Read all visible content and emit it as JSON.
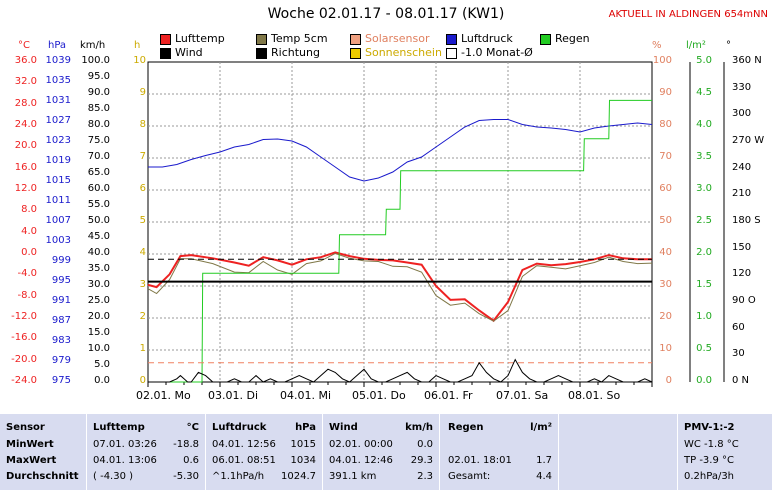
{
  "header": {
    "title": "Woche 02.01.17 - 08.01.17 (KW1)",
    "live": "AKTUELL IN ALDINGEN 654mNN"
  },
  "legend": [
    {
      "label": "Lufttemp",
      "color": "#ee2222"
    },
    {
      "label": "Temp 5cm",
      "color": "#807848"
    },
    {
      "label": "Solarsensor",
      "color": "#f0a080",
      "text_color": "#e08060"
    },
    {
      "label": "Luftdruck",
      "color": "#1a1acc"
    },
    {
      "label": "Regen",
      "color": "#22cc22"
    },
    {
      "label": "Wind",
      "color": "#000000"
    },
    {
      "label": "Richtung",
      "color": "#000000"
    },
    {
      "label": "Sonnenschein",
      "color": "#eecc00",
      "text_color": "#ccaa00"
    },
    {
      "label": "-1.0 Monat-Ø",
      "color": "#ffffff"
    }
  ],
  "axes": {
    "temp": {
      "unit": "°C",
      "color": "#ee2222",
      "ticks": [
        "36.0",
        "32.0",
        "28.0",
        "24.0",
        "20.0",
        "16.0",
        "12.0",
        "8.0",
        "4.0",
        "0.0",
        "-4.0",
        "-8.0",
        "-12.0",
        "-16.0",
        "-20.0",
        "-24.0"
      ]
    },
    "pressure": {
      "unit": "hPa",
      "color": "#1a1acc",
      "ticks": [
        "1039",
        "1035",
        "1031",
        "1027",
        "1023",
        "1019",
        "1015",
        "1011",
        "1007",
        "1003",
        "999",
        "995",
        "991",
        "987",
        "983",
        "979",
        "975"
      ]
    },
    "wind": {
      "unit": "km/h",
      "color": "#000000",
      "ticks": [
        "100.0",
        "95.0",
        "90.0",
        "85.0",
        "80.0",
        "75.0",
        "70.0",
        "65.0",
        "60.0",
        "55.0",
        "50.0",
        "45.0",
        "40.0",
        "35.0",
        "30.0",
        "25.0",
        "20.0",
        "15.0",
        "10.0",
        "5.0",
        "0.0"
      ]
    },
    "sun": {
      "unit": "h",
      "color": "#ccaa00",
      "ticks": [
        "10",
        "9",
        "8",
        "7",
        "6",
        "5",
        "4",
        "3",
        "2",
        "1",
        "0"
      ]
    },
    "percent": {
      "unit": "%",
      "color": "#e08060",
      "ticks": [
        "100",
        "90",
        "80",
        "70",
        "60",
        "50",
        "40",
        "30",
        "20",
        "10",
        "0"
      ]
    },
    "rain": {
      "unit": "l/m²",
      "color": "#22aa22",
      "ticks": [
        "5.0",
        "4.5",
        "4.0",
        "3.5",
        "3.0",
        "2.5",
        "2.0",
        "1.5",
        "1.0",
        "0.5",
        "0.0"
      ]
    },
    "direction": {
      "unit": "°",
      "color": "#000000",
      "ticks": [
        "360 N",
        "330",
        "300",
        "270 W",
        "240",
        "210",
        "180 S",
        "150",
        "120",
        "90 O",
        "60",
        "30",
        "0 N"
      ]
    }
  },
  "chart_data": {
    "type": "line",
    "title": "Woche 02.01.17 - 08.01.17 (KW1)",
    "x_unit": "day",
    "x_range": [
      0,
      7
    ],
    "categories": [
      "02.01. Mo",
      "03.01. Di",
      "04.01. Mi",
      "05.01. Do",
      "06.01. Fr",
      "07.01. Sa",
      "08.01. So"
    ],
    "series": [
      {
        "name": "Lufttemp",
        "axis": "temp",
        "color": "#ee2222",
        "width": 2,
        "x": [
          0,
          0.12,
          0.3,
          0.45,
          0.6,
          0.9,
          1.2,
          1.4,
          1.6,
          1.8,
          2.0,
          2.2,
          2.4,
          2.6,
          2.8,
          3.0,
          3.2,
          3.4,
          3.6,
          3.8,
          4.0,
          4.2,
          4.4,
          4.6,
          4.8,
          5.0,
          5.2,
          5.4,
          5.6,
          5.8,
          6.0,
          6.2,
          6.4,
          6.6,
          6.8,
          7.0
        ],
        "y": [
          -5.8,
          -6.2,
          -3.8,
          -0.4,
          -0.2,
          -0.8,
          -1.6,
          -2.2,
          -0.6,
          -1.2,
          -2.0,
          -1.0,
          -0.6,
          0.3,
          -0.4,
          -0.9,
          -1.1,
          -1.2,
          -1.6,
          -2.0,
          -6.0,
          -8.6,
          -8.5,
          -10.6,
          -12.5,
          -9.0,
          -3.0,
          -1.8,
          -2.1,
          -1.9,
          -1.5,
          -1.0,
          -0.2,
          -0.8,
          -1.0,
          -1.0
        ]
      },
      {
        "name": "Temp 5cm",
        "axis": "temp",
        "color": "#807848",
        "width": 1,
        "x": [
          0,
          0.12,
          0.3,
          0.45,
          0.6,
          0.9,
          1.2,
          1.4,
          1.6,
          1.8,
          2.0,
          2.2,
          2.4,
          2.6,
          2.8,
          3.0,
          3.2,
          3.4,
          3.6,
          3.8,
          4.0,
          4.2,
          4.4,
          4.6,
          4.8,
          5.0,
          5.2,
          5.4,
          5.6,
          5.8,
          6.0,
          6.2,
          6.4,
          6.6,
          6.8,
          7.0
        ],
        "y": [
          -6.5,
          -7.4,
          -4.8,
          -0.9,
          -0.9,
          -1.8,
          -3.4,
          -3.5,
          -1.4,
          -3.0,
          -3.8,
          -1.8,
          -1.3,
          0.1,
          -0.8,
          -1.3,
          -1.4,
          -2.3,
          -2.4,
          -3.4,
          -7.8,
          -9.6,
          -9.2,
          -11.2,
          -12.6,
          -10.6,
          -4.2,
          -2.2,
          -2.5,
          -2.8,
          -2.2,
          -1.6,
          -0.6,
          -1.4,
          -1.8,
          -1.7
        ]
      },
      {
        "name": "Luftdruck",
        "axis": "pressure",
        "color": "#1a1acc",
        "width": 1,
        "x": [
          0,
          0.2,
          0.4,
          0.6,
          0.8,
          1.0,
          1.2,
          1.4,
          1.6,
          1.8,
          2.0,
          2.2,
          2.4,
          2.6,
          2.8,
          3.0,
          3.2,
          3.4,
          3.6,
          3.8,
          4.0,
          4.2,
          4.4,
          4.6,
          4.8,
          5.0,
          5.2,
          5.4,
          5.6,
          5.8,
          6.0,
          6.2,
          6.4,
          6.6,
          6.8,
          7.0
        ],
        "y": [
          1018.0,
          1018.0,
          1018.5,
          1019.5,
          1020.3,
          1021.0,
          1022.0,
          1022.5,
          1023.5,
          1023.6,
          1023.2,
          1022.0,
          1020.0,
          1018.0,
          1016.0,
          1015.2,
          1015.8,
          1017.0,
          1019.0,
          1020.0,
          1022.0,
          1024.0,
          1026.0,
          1027.3,
          1027.5,
          1027.5,
          1026.5,
          1026.0,
          1025.8,
          1025.5,
          1025.0,
          1025.8,
          1026.2,
          1026.5,
          1026.8,
          1026.5
        ]
      },
      {
        "name": "Regen",
        "axis": "rain",
        "color": "#22cc22",
        "width": 1,
        "step": true,
        "x": [
          0,
          0.75,
          0.76,
          2.65,
          2.66,
          3.3,
          3.31,
          3.5,
          3.51,
          6.05,
          6.06,
          6.4,
          6.41,
          7.0
        ],
        "y": [
          0,
          0,
          1.7,
          1.7,
          2.3,
          2.3,
          2.7,
          2.7,
          3.3,
          3.3,
          3.8,
          3.8,
          4.4,
          4.4
        ]
      },
      {
        "name": "Richtung",
        "axis": "direction",
        "color": "#000000",
        "width": 2,
        "x": [
          0,
          7
        ],
        "y": [
          113,
          113
        ]
      },
      {
        "name": "-1.0 Monat-Ø",
        "axis": "temp",
        "color": "#000000",
        "width": 1,
        "dash": true,
        "x": [
          0,
          7
        ],
        "y": [
          -1.0,
          -1.0
        ]
      },
      {
        "name": "Solarsensor",
        "axis": "percent",
        "color": "#f08060",
        "width": 1,
        "dash": true,
        "x": [
          0,
          7
        ],
        "y": [
          6,
          6
        ]
      },
      {
        "name": "Wind",
        "axis": "wind",
        "color": "#000000",
        "width": 1,
        "x": [
          0,
          0.1,
          0.2,
          0.3,
          0.4,
          0.45,
          0.5,
          0.55,
          0.6,
          0.7,
          0.8,
          0.9,
          1.0,
          1.1,
          1.2,
          1.3,
          1.4,
          1.5,
          1.6,
          1.7,
          1.8,
          1.9,
          2.0,
          2.1,
          2.2,
          2.3,
          2.4,
          2.5,
          2.6,
          2.7,
          2.8,
          2.9,
          3.0,
          3.1,
          3.2,
          3.3,
          3.4,
          3.5,
          3.6,
          3.7,
          3.8,
          3.9,
          4.0,
          4.1,
          4.2,
          4.3,
          4.4,
          4.5,
          4.6,
          4.7,
          4.8,
          4.9,
          5.0,
          5.1,
          5.2,
          5.3,
          5.4,
          5.5,
          5.6,
          5.7,
          5.8,
          5.9,
          6.0,
          6.1,
          6.2,
          6.3,
          6.4,
          6.5,
          6.6,
          6.7,
          6.8,
          6.9,
          7.0
        ],
        "y": [
          0,
          0,
          0,
          0,
          1,
          2,
          1,
          0,
          0,
          3,
          2,
          0,
          0,
          0,
          1,
          0,
          0,
          2,
          0,
          1,
          0,
          0,
          1,
          2,
          1,
          0,
          2,
          4,
          3,
          1,
          0,
          2,
          4,
          1,
          0,
          0,
          1,
          2,
          3,
          1,
          0,
          0,
          2,
          1,
          0,
          0,
          1,
          2,
          6,
          3,
          1,
          0,
          2,
          7,
          3,
          1,
          0,
          0,
          1,
          2,
          1,
          0,
          0,
          0,
          1,
          0,
          2,
          1,
          0,
          0,
          0,
          1,
          0
        ]
      }
    ]
  },
  "table": {
    "sensor": {
      "header": "Sensor",
      "rows": [
        "MinWert",
        "MaxWert",
        "Durchschnitt"
      ]
    },
    "temp": {
      "header": "Lufttemp",
      "unit": "°C",
      "rows": [
        {
          "t": "07.01.  03:26",
          "v": "-18.8"
        },
        {
          "t": "04.01.  13:06",
          "v": "0.6"
        },
        {
          "t": "( -4.30 )",
          "v": "-5.30"
        }
      ]
    },
    "pressure": {
      "header": "Luftdruck",
      "unit": "hPa",
      "rows": [
        {
          "t": "04.01.  12:56",
          "v": "1015"
        },
        {
          "t": "06.01.  08:51",
          "v": "1034"
        },
        {
          "t": "^1.1hPa/h",
          "v": "1024.7"
        }
      ]
    },
    "wind": {
      "header": "Wind",
      "unit": "km/h",
      "rows": [
        {
          "t": "02.01.  00:00",
          "v": "0.0"
        },
        {
          "t": "04.01.  12:46",
          "v": "29.3"
        },
        {
          "t": "391.1 km",
          "v": "2.3"
        }
      ]
    },
    "rain": {
      "header": "Regen",
      "unit": "l/m²",
      "rows": [
        {
          "t": "",
          "v": ""
        },
        {
          "t": "02.01.  18:01",
          "v": "1.7"
        },
        {
          "t": "Gesamt:",
          "v": "4.4"
        }
      ]
    },
    "pmv": {
      "header": "PMV-1:-2",
      "rows": [
        "WC -1.8 °C",
        "TP -3.9 °C",
        "0.2hPa/3h"
      ]
    }
  }
}
